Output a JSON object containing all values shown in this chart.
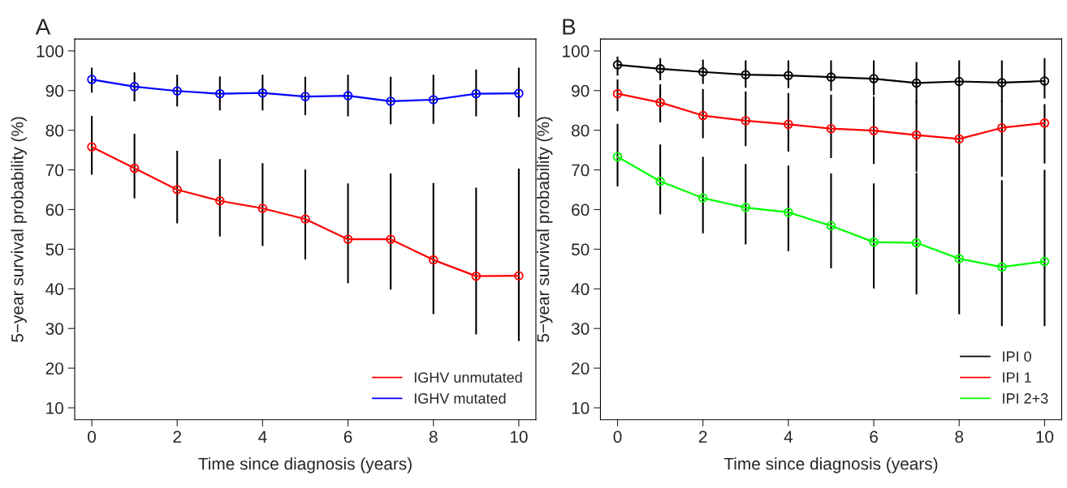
{
  "chart_data": [
    {
      "type": "line",
      "title": "A",
      "xlabel": "Time since diagnosis (years)",
      "ylabel": "5−year survival probability (%)",
      "x": [
        0,
        1,
        2,
        3,
        4,
        5,
        6,
        7,
        8,
        9,
        10
      ],
      "series": [
        {
          "name": "IGHV unmutated",
          "color": "#ff0000",
          "values": [
            75.8,
            70.4,
            65.0,
            62.2,
            60.3,
            57.6,
            52.5,
            52.5,
            47.3,
            43.2,
            43.3
          ],
          "errors": [
            [
              68.8,
              83.6
            ],
            [
              62.8,
              79.1
            ],
            [
              56.5,
              74.8
            ],
            [
              53.2,
              72.7
            ],
            [
              50.8,
              71.7
            ],
            [
              47.4,
              70.1
            ],
            [
              41.4,
              66.6
            ],
            [
              39.8,
              69.1
            ],
            [
              33.6,
              66.7
            ],
            [
              28.5,
              65.5
            ],
            [
              26.8,
              70.3
            ]
          ]
        },
        {
          "name": "IGHV mutated",
          "color": "#0000ff",
          "values": [
            92.8,
            91.0,
            89.9,
            89.2,
            89.4,
            88.5,
            88.7,
            87.3,
            87.7,
            89.2,
            89.3
          ],
          "errors": [
            [
              89.5,
              95.8
            ],
            [
              87.3,
              94.6
            ],
            [
              86.0,
              94.0
            ],
            [
              85.0,
              93.6
            ],
            [
              85.0,
              94.0
            ],
            [
              83.8,
              93.5
            ],
            [
              83.5,
              94.0
            ],
            [
              81.5,
              93.5
            ],
            [
              81.6,
              94.0
            ],
            [
              83.5,
              95.3
            ],
            [
              83.3,
              95.8
            ]
          ]
        }
      ],
      "xlim": [
        -0.4,
        10.4
      ],
      "ylim": [
        7,
        103
      ],
      "xticks": [
        0,
        2,
        4,
        6,
        8,
        10
      ],
      "yticks": [
        10,
        20,
        30,
        40,
        50,
        60,
        70,
        80,
        90,
        100
      ],
      "marker": "circle",
      "line_style": "solid",
      "grid": false,
      "legend": "bottom right"
    },
    {
      "type": "line",
      "title": "B",
      "xlabel": "Time since diagnosis (years)",
      "ylabel": "5−year survival probability (%)",
      "x": [
        0,
        1,
        2,
        3,
        4,
        5,
        6,
        7,
        8,
        9,
        10
      ],
      "series": [
        {
          "name": "IPI 0",
          "color": "#000000",
          "values": [
            96.5,
            95.5,
            94.7,
            94.0,
            93.8,
            93.4,
            93.0,
            91.9,
            92.3,
            92.0,
            92.4
          ],
          "errors": [
            [
              93.8,
              98.6
            ],
            [
              92.6,
              98.2
            ],
            [
              91.7,
              97.8
            ],
            [
              90.7,
              97.6
            ],
            [
              90.6,
              97.6
            ],
            [
              89.9,
              97.6
            ],
            [
              88.8,
              97.6
            ],
            [
              86.8,
              97.2
            ],
            [
              87.3,
              97.6
            ],
            [
              87.2,
              97.6
            ],
            [
              88.0,
              98.2
            ]
          ]
        },
        {
          "name": "IPI 1",
          "color": "#ff0000",
          "values": [
            89.2,
            87.0,
            83.7,
            82.4,
            81.5,
            80.4,
            79.9,
            78.8,
            77.8,
            80.6,
            81.8
          ],
          "errors": [
            [
              84.8,
              92.8
            ],
            [
              82.0,
              91.6
            ],
            [
              78.0,
              90.4
            ],
            [
              76.0,
              89.8
            ],
            [
              74.6,
              89.4
            ],
            [
              73.0,
              89.0
            ],
            [
              71.5,
              88.5
            ],
            [
              69.5,
              87.6
            ],
            [
              67.5,
              87.3
            ],
            [
              68.3,
              87.5
            ],
            [
              71.6,
              86.6
            ]
          ]
        },
        {
          "name": "IPI 2+3",
          "color": "#00ff00",
          "values": [
            73.3,
            67.1,
            62.9,
            60.5,
            59.3,
            55.9,
            51.8,
            51.6,
            47.6,
            45.5,
            46.9
          ],
          "errors": [
            [
              65.8,
              81.6
            ],
            [
              58.8,
              76.4
            ],
            [
              54.0,
              73.3
            ],
            [
              51.2,
              71.5
            ],
            [
              49.5,
              71.1
            ],
            [
              45.2,
              69.1
            ],
            [
              40.1,
              66.6
            ],
            [
              38.6,
              69.3
            ],
            [
              33.6,
              67.6
            ],
            [
              30.6,
              67.4
            ],
            [
              30.6,
              70.0
            ]
          ]
        }
      ],
      "xlim": [
        -0.4,
        10.4
      ],
      "ylim": [
        7,
        103
      ],
      "xticks": [
        0,
        2,
        4,
        6,
        8,
        10
      ],
      "yticks": [
        10,
        20,
        30,
        40,
        50,
        60,
        70,
        80,
        90,
        100
      ],
      "marker": "circle",
      "line_style": "solid",
      "grid": false,
      "legend": "bottom right"
    }
  ]
}
